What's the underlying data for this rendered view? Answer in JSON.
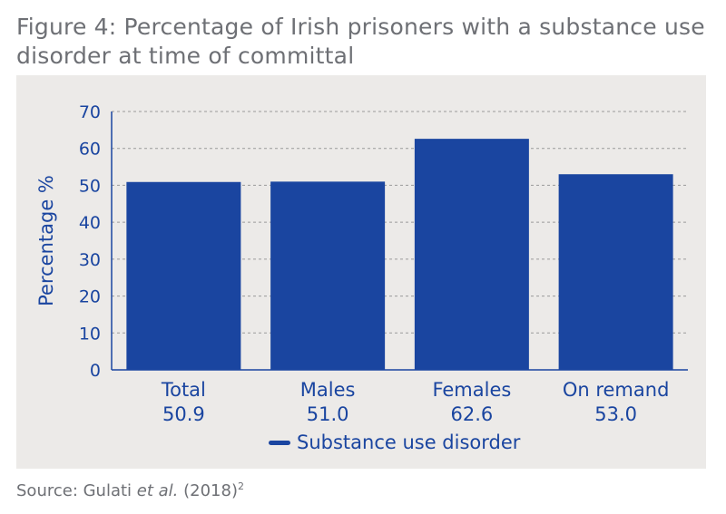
{
  "figure": {
    "title": "Figure 4: Percentage of Irish prisoners with a substance use disorder at time of committal",
    "source_prefix": "Source: Gulati ",
    "source_italic": "et al.",
    "source_suffix": " (2018)",
    "source_sup": "2"
  },
  "colors": {
    "bar": "#1a45a0",
    "axis_text": "#1a45a0",
    "grid": "#9a9a9a",
    "panel_bg": "#eceae8",
    "title_text": "#6e7075"
  },
  "chart_data": {
    "type": "bar",
    "title": "Figure 4: Percentage of Irish prisoners with a substance use disorder at time of committal",
    "categories": [
      "Total",
      "Males",
      "Females",
      "On remand"
    ],
    "category_values_text": [
      "50.9",
      "51.0",
      "62.6",
      "53.0"
    ],
    "series": [
      {
        "name": "Substance use disorder",
        "values": [
          50.9,
          51.0,
          62.6,
          53.0
        ]
      }
    ],
    "xlabel": "",
    "ylabel": "Percentage %",
    "ylim": [
      0,
      70
    ],
    "yticks": [
      0,
      10,
      20,
      30,
      40,
      50,
      60,
      70
    ],
    "grid": true,
    "legend": "bottom"
  }
}
